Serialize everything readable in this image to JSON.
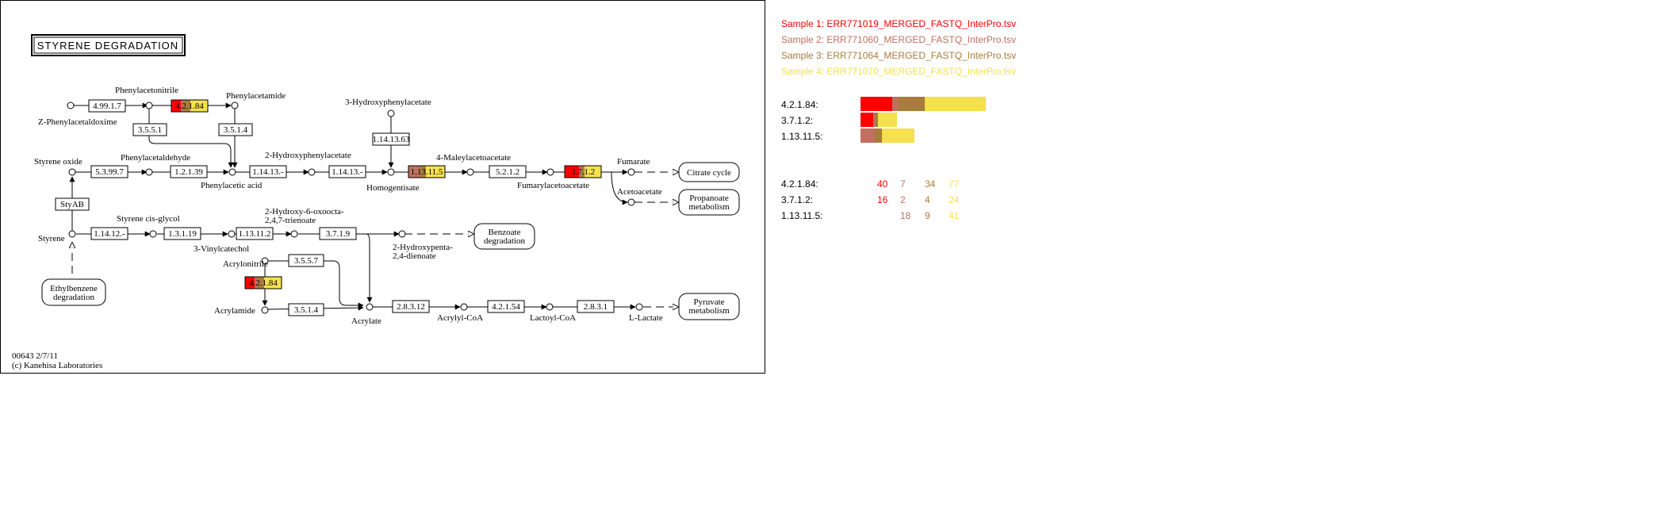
{
  "map": {
    "title": "STYRENE DEGRADATION",
    "footer_id": "00643 2/7/11",
    "footer_copyright": "(c) Kanehisa Laboratories"
  },
  "compounds": {
    "z_phenylacetaldoxime": "Z-Phenylacetaldoxime",
    "phenylacetonitrile": "Phenylacetonitrile",
    "phenylacetamide": "Phenylacetamide",
    "hydroxyphenylacetate_3": "3-Hydroxyphenylacetate",
    "styrene_oxide": "Styrene oxide",
    "phenylacetaldehyde": "Phenylacetaldehyde",
    "hydroxyphenylacetate_2": "2-Hydroxyphenylacetate",
    "maleylacetoacetate": "4-Maleylacetoacetate",
    "fumarate": "Fumarate",
    "phenylacetic_acid": "Phenylacetic acid",
    "homogentisate": "Homogentisate",
    "fumarylacetoacetate": "Fumarylacetoacetate",
    "acetoacetate": "Acetoacetate",
    "styrene_cis_glycol": "Styrene cis-glycol",
    "hydroxy_oxoocta_1": "2-Hydroxy-6-oxoocta-",
    "hydroxy_oxoocta_2": "2,4,7-trienoate",
    "styrene": "Styrene",
    "vinylcatechol": "3-Vinylcatechol",
    "hydroxypenta_1": "2-Hydroxypenta-",
    "hydroxypenta_2": "2,4-dienoate",
    "acrylonitrile": "Acrylonitrile",
    "acrylamide": "Acrylamide",
    "acrylate": "Acrylate",
    "acrylyl_coa": "Acrylyl-CoA",
    "lactoyl_coa": "Lactoyl-CoA",
    "l_lactate": "L-Lactate"
  },
  "enzymes": {
    "e4_99_1_7": "4.99.1.7",
    "e4_2_1_84_top": "4.2.1.84",
    "e3_5_5_1": "3.5.5.1",
    "e3_5_1_4_top": "3.5.1.4",
    "e1_14_13_63": "1.14.13.63",
    "e5_3_99_7": "5.3.99.7",
    "e1_2_1_39": "1.2.1.39",
    "e1_14_13_a": "1.14.13.-",
    "e1_14_13_b": "1.14.13.-",
    "e1_13_11_5": "1.13.11.5",
    "e5_2_1_2": "5.2.1.2",
    "e3_7_1_2": "3.7.1.2",
    "styab": "StyAB",
    "e1_14_12": "1.14.12.-",
    "e1_3_1_19": "1.3.1.19",
    "e1_13_11_2": "1.13.11.2",
    "e3_7_1_9": "3.7.1.9",
    "e3_5_5_7": "3.5.5.7",
    "e4_2_1_84_bottom": "4.2.1.84",
    "e3_5_1_4_bottom": "3.5.1.4",
    "e2_8_3_12": "2.8.3.12",
    "e4_2_1_54": "4.2.1.54",
    "e2_8_3_1": "2.8.3.1"
  },
  "pathways": {
    "citrate_cycle": "Citrate cycle",
    "propanoate_1": "Propanoate",
    "propanoate_2": "metabolism",
    "benzoate_1": "Benzoate",
    "benzoate_2": "degradation",
    "ethylbenzene_1": "Ethylbenzene",
    "ethylbenzene_2": "degradation",
    "pyruvate_1": "Pyruvate",
    "pyruvate_2": "metabolism"
  },
  "samples": [
    {
      "label": "Sample 1: ERR771019_MERGED_FASTQ_InterPro.tsv",
      "color": "#ff0000"
    },
    {
      "label": "Sample 2: ERR771060_MERGED_FASTQ_InterPro.tsv",
      "color": "#c07060"
    },
    {
      "label": "Sample 3: ERR771064_MERGED_FASTQ_InterPro.tsv",
      "color": "#a87c3c"
    },
    {
      "label": "Sample 4: ERR771070_MERGED_FASTQ_InterPro.tsv",
      "color": "#f5e050"
    }
  ],
  "chart_data": {
    "type": "bar",
    "stacked": true,
    "orientation": "horizontal",
    "categories": [
      "4.2.1.84:",
      "3.7.1.2:",
      "1.13.11.5:"
    ],
    "series": [
      {
        "name": "Sample 1: ERR771019_MERGED_FASTQ_InterPro.tsv",
        "values": [
          40,
          16,
          0
        ]
      },
      {
        "name": "Sample 2: ERR771060_MERGED_FASTQ_InterPro.tsv",
        "values": [
          7,
          2,
          18
        ]
      },
      {
        "name": "Sample 3: ERR771064_MERGED_FASTQ_InterPro.tsv",
        "values": [
          34,
          4,
          9
        ]
      },
      {
        "name": "Sample 4: ERR771070_MERGED_FASTQ_InterPro.tsv",
        "values": [
          77,
          24,
          41
        ]
      }
    ],
    "count_table": {
      "rows": [
        {
          "label": "4.2.1.84:",
          "values": [
            "40",
            "7",
            "34",
            "77"
          ]
        },
        {
          "label": "3.7.1.2:",
          "values": [
            "16",
            "2",
            "4",
            "24"
          ]
        },
        {
          "label": "1.13.11.5:",
          "values": [
            "",
            "18",
            "9",
            "41"
          ]
        }
      ]
    }
  }
}
